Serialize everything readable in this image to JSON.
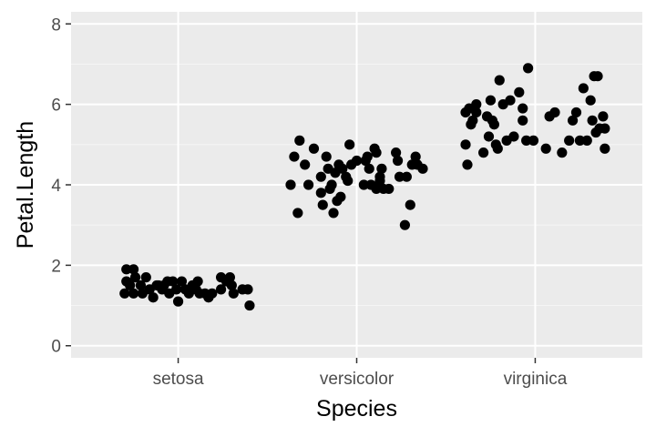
{
  "colors": {
    "panel_background": "#EBEBEB",
    "grid_major": "#FFFFFF",
    "grid_minor": "#F5F5F5",
    "point": "#000000",
    "tick": "#333333",
    "tick_label": "#4D4D4D"
  },
  "chart_data": {
    "type": "scatter",
    "style": "ggplot2 jitter plot, grey panel with white grid",
    "xlabel": "Species",
    "ylabel": "Petal.Length",
    "categories": [
      "setosa",
      "versicolor",
      "virginica"
    ],
    "ylim": [
      -0.3,
      8.3
    ],
    "yticks": [
      0,
      2,
      4,
      6,
      8
    ],
    "ytick_labels": [
      "0",
      "2",
      "4",
      "6",
      "8"
    ],
    "grid": true,
    "legend": "none",
    "points": [
      {
        "x": 0.71,
        "y": 1.9
      },
      {
        "x": 0.75,
        "y": 1.9
      },
      {
        "x": 0.71,
        "y": 1.6
      },
      {
        "x": 0.76,
        "y": 1.7
      },
      {
        "x": 0.73,
        "y": 1.5
      },
      {
        "x": 0.7,
        "y": 1.3
      },
      {
        "x": 0.75,
        "y": 1.3
      },
      {
        "x": 0.79,
        "y": 1.5
      },
      {
        "x": 0.82,
        "y": 1.7
      },
      {
        "x": 0.84,
        "y": 1.4
      },
      {
        "x": 0.86,
        "y": 1.2
      },
      {
        "x": 0.89,
        "y": 1.5
      },
      {
        "x": 0.91,
        "y": 1.4
      },
      {
        "x": 0.92,
        "y": 1.5
      },
      {
        "x": 0.94,
        "y": 1.6
      },
      {
        "x": 0.97,
        "y": 1.6
      },
      {
        "x": 0.99,
        "y": 1.4
      },
      {
        "x": 1.02,
        "y": 1.6
      },
      {
        "x": 0.95,
        "y": 1.3
      },
      {
        "x": 1.0,
        "y": 1.1
      },
      {
        "x": 1.06,
        "y": 1.3
      },
      {
        "x": 1.04,
        "y": 1.4
      },
      {
        "x": 1.08,
        "y": 1.5
      },
      {
        "x": 1.11,
        "y": 1.6
      },
      {
        "x": 1.1,
        "y": 1.4
      },
      {
        "x": 1.12,
        "y": 1.3
      },
      {
        "x": 1.15,
        "y": 1.3
      },
      {
        "x": 1.17,
        "y": 1.2
      },
      {
        "x": 1.19,
        "y": 1.3
      },
      {
        "x": 1.24,
        "y": 1.7
      },
      {
        "x": 1.24,
        "y": 1.4
      },
      {
        "x": 1.29,
        "y": 1.7
      },
      {
        "x": 1.3,
        "y": 1.5
      },
      {
        "x": 1.31,
        "y": 1.3
      },
      {
        "x": 1.36,
        "y": 1.4
      },
      {
        "x": 1.39,
        "y": 1.4
      },
      {
        "x": 1.4,
        "y": 1.0
      },
      {
        "x": 0.8,
        "y": 1.3
      },
      {
        "x": 0.88,
        "y": 1.5
      },
      {
        "x": 1.27,
        "y": 1.6
      },
      {
        "x": 1.63,
        "y": 4.0
      },
      {
        "x": 1.65,
        "y": 4.7
      },
      {
        "x": 1.68,
        "y": 5.1
      },
      {
        "x": 1.67,
        "y": 3.3
      },
      {
        "x": 1.71,
        "y": 4.5
      },
      {
        "x": 1.73,
        "y": 4.0
      },
      {
        "x": 1.76,
        "y": 4.9
      },
      {
        "x": 1.8,
        "y": 4.2
      },
      {
        "x": 1.8,
        "y": 3.8
      },
      {
        "x": 1.81,
        "y": 3.5
      },
      {
        "x": 1.83,
        "y": 4.7
      },
      {
        "x": 1.84,
        "y": 4.4
      },
      {
        "x": 1.85,
        "y": 3.9
      },
      {
        "x": 1.86,
        "y": 4.0
      },
      {
        "x": 1.87,
        "y": 3.3
      },
      {
        "x": 1.88,
        "y": 4.3
      },
      {
        "x": 1.89,
        "y": 3.6
      },
      {
        "x": 1.9,
        "y": 4.5
      },
      {
        "x": 1.91,
        "y": 3.7
      },
      {
        "x": 1.92,
        "y": 4.4
      },
      {
        "x": 1.94,
        "y": 4.2
      },
      {
        "x": 1.95,
        "y": 4.1
      },
      {
        "x": 1.96,
        "y": 5.0
      },
      {
        "x": 1.97,
        "y": 4.5
      },
      {
        "x": 2.0,
        "y": 4.6
      },
      {
        "x": 2.04,
        "y": 4.0
      },
      {
        "x": 2.05,
        "y": 4.6
      },
      {
        "x": 2.06,
        "y": 4.7
      },
      {
        "x": 2.07,
        "y": 4.4
      },
      {
        "x": 2.08,
        "y": 4.0
      },
      {
        "x": 2.1,
        "y": 4.9
      },
      {
        "x": 2.11,
        "y": 4.8
      },
      {
        "x": 2.11,
        "y": 3.9
      },
      {
        "x": 2.13,
        "y": 4.1
      },
      {
        "x": 2.14,
        "y": 4.4
      },
      {
        "x": 2.15,
        "y": 3.9
      },
      {
        "x": 2.18,
        "y": 3.9
      },
      {
        "x": 2.22,
        "y": 4.8
      },
      {
        "x": 2.23,
        "y": 4.6
      },
      {
        "x": 2.24,
        "y": 4.2
      },
      {
        "x": 2.27,
        "y": 3.0
      },
      {
        "x": 2.28,
        "y": 4.2
      },
      {
        "x": 2.3,
        "y": 3.5
      },
      {
        "x": 2.31,
        "y": 4.5
      },
      {
        "x": 2.33,
        "y": 4.7
      },
      {
        "x": 2.34,
        "y": 4.5
      },
      {
        "x": 2.37,
        "y": 4.4
      },
      {
        "x": 2.13,
        "y": 4.2
      },
      {
        "x": 2.61,
        "y": 5.8
      },
      {
        "x": 2.61,
        "y": 5.0
      },
      {
        "x": 2.62,
        "y": 4.5
      },
      {
        "x": 2.63,
        "y": 5.9
      },
      {
        "x": 2.64,
        "y": 5.5
      },
      {
        "x": 2.65,
        "y": 5.6
      },
      {
        "x": 2.67,
        "y": 6.0
      },
      {
        "x": 2.71,
        "y": 4.8
      },
      {
        "x": 2.73,
        "y": 5.7
      },
      {
        "x": 2.74,
        "y": 5.2
      },
      {
        "x": 2.75,
        "y": 6.1
      },
      {
        "x": 2.76,
        "y": 5.6
      },
      {
        "x": 2.77,
        "y": 5.5
      },
      {
        "x": 2.78,
        "y": 5.0
      },
      {
        "x": 2.79,
        "y": 4.9
      },
      {
        "x": 2.8,
        "y": 6.6
      },
      {
        "x": 2.82,
        "y": 6.0
      },
      {
        "x": 2.84,
        "y": 5.1
      },
      {
        "x": 2.86,
        "y": 6.1
      },
      {
        "x": 2.88,
        "y": 5.2
      },
      {
        "x": 2.91,
        "y": 6.3
      },
      {
        "x": 2.93,
        "y": 5.9
      },
      {
        "x": 2.93,
        "y": 5.6
      },
      {
        "x": 2.95,
        "y": 5.1
      },
      {
        "x": 2.96,
        "y": 6.9
      },
      {
        "x": 2.99,
        "y": 5.1
      },
      {
        "x": 3.06,
        "y": 4.9
      },
      {
        "x": 3.08,
        "y": 5.7
      },
      {
        "x": 3.11,
        "y": 5.8
      },
      {
        "x": 3.15,
        "y": 4.8
      },
      {
        "x": 3.19,
        "y": 5.1
      },
      {
        "x": 3.21,
        "y": 5.6
      },
      {
        "x": 3.23,
        "y": 5.8
      },
      {
        "x": 3.25,
        "y": 5.1
      },
      {
        "x": 3.27,
        "y": 6.4
      },
      {
        "x": 3.29,
        "y": 5.1
      },
      {
        "x": 3.31,
        "y": 6.1
      },
      {
        "x": 3.32,
        "y": 5.6
      },
      {
        "x": 3.33,
        "y": 6.7
      },
      {
        "x": 3.34,
        "y": 5.3
      },
      {
        "x": 3.35,
        "y": 6.7
      },
      {
        "x": 3.36,
        "y": 5.4
      },
      {
        "x": 3.38,
        "y": 5.7
      },
      {
        "x": 3.39,
        "y": 5.4
      },
      {
        "x": 3.39,
        "y": 4.9
      },
      {
        "x": 2.67,
        "y": 5.8
      }
    ]
  }
}
